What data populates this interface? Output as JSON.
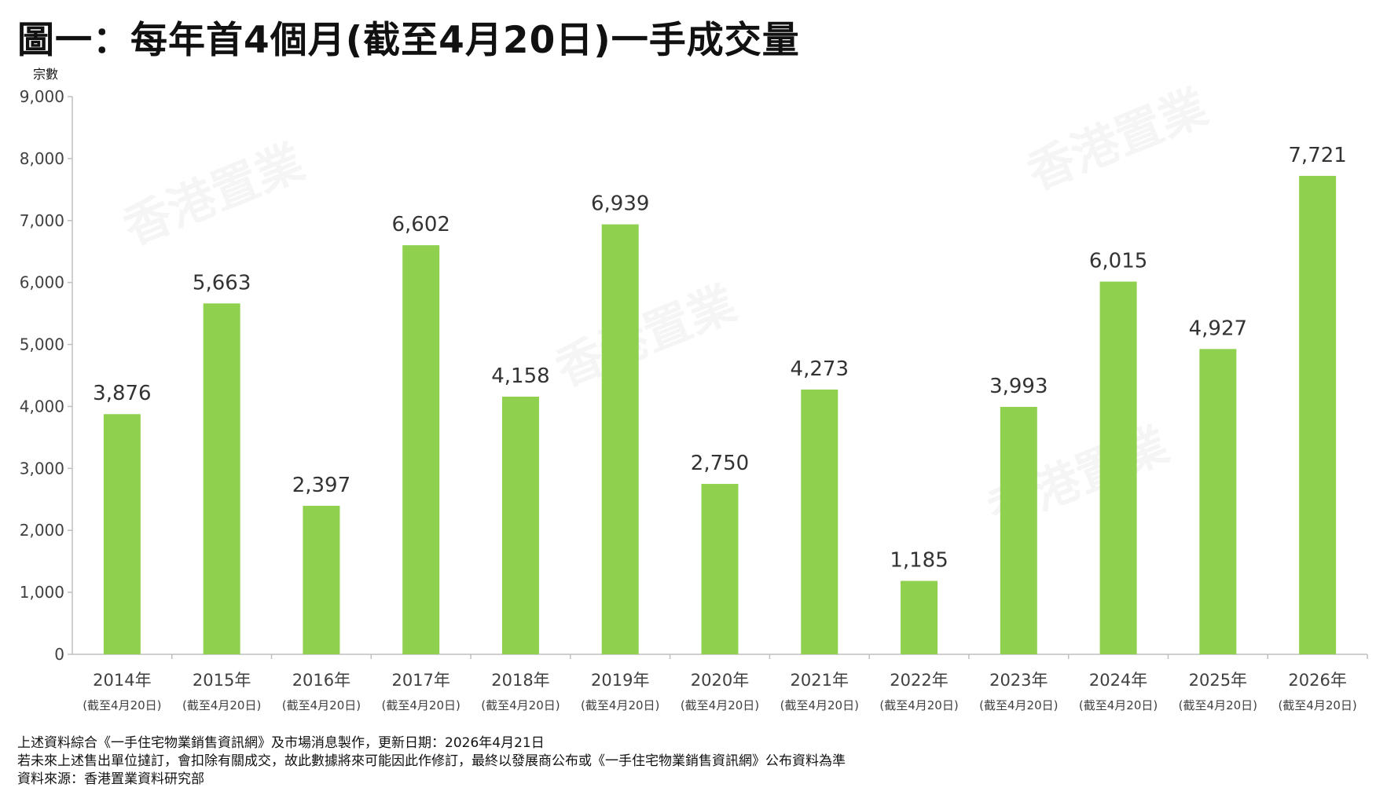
{
  "title": "圖一：每年首4個月(截至4月20日)一手成交量",
  "watermark_text": "香港置業",
  "colors": {
    "bar": "#8fd14f",
    "axis": "#bfbfbf",
    "text": "#404040"
  },
  "chart_data": {
    "type": "bar",
    "ylabel": "宗數",
    "ylim": [
      0,
      9000
    ],
    "yticks": [
      "0",
      "1,000",
      "2,000",
      "3,000",
      "4,000",
      "5,000",
      "6,000",
      "7,000",
      "8,000",
      "9,000"
    ],
    "categories": [
      "2014年",
      "2015年",
      "2016年",
      "2017年",
      "2018年",
      "2019年",
      "2020年",
      "2021年",
      "2022年",
      "2023年",
      "2024年",
      "2025年",
      "2026年"
    ],
    "category_sublabel": "(截至4月20日)",
    "values": [
      3876,
      5663,
      2397,
      6602,
      4158,
      6939,
      2750,
      4273,
      1185,
      3993,
      6015,
      4927,
      7721
    ],
    "value_labels": [
      "3,876",
      "5,663",
      "2,397",
      "6,602",
      "4,158",
      "6,939",
      "2,750",
      "4,273",
      "1,185",
      "3,993",
      "6,015",
      "4,927",
      "7,721"
    ],
    "grid": false,
    "legend": "none"
  },
  "footnotes": [
    "上述資料綜合《一手住宅物業銷售資訊網》及市場消息製作，更新日期：2026年4月21日",
    "若未來上述售出單位撻訂，會扣除有關成交，故此數據將來可能因此作修訂，最終以發展商公布或《一手住宅物業銷售資訊網》公布資料為準",
    "資料來源：香港置業資料研究部"
  ]
}
